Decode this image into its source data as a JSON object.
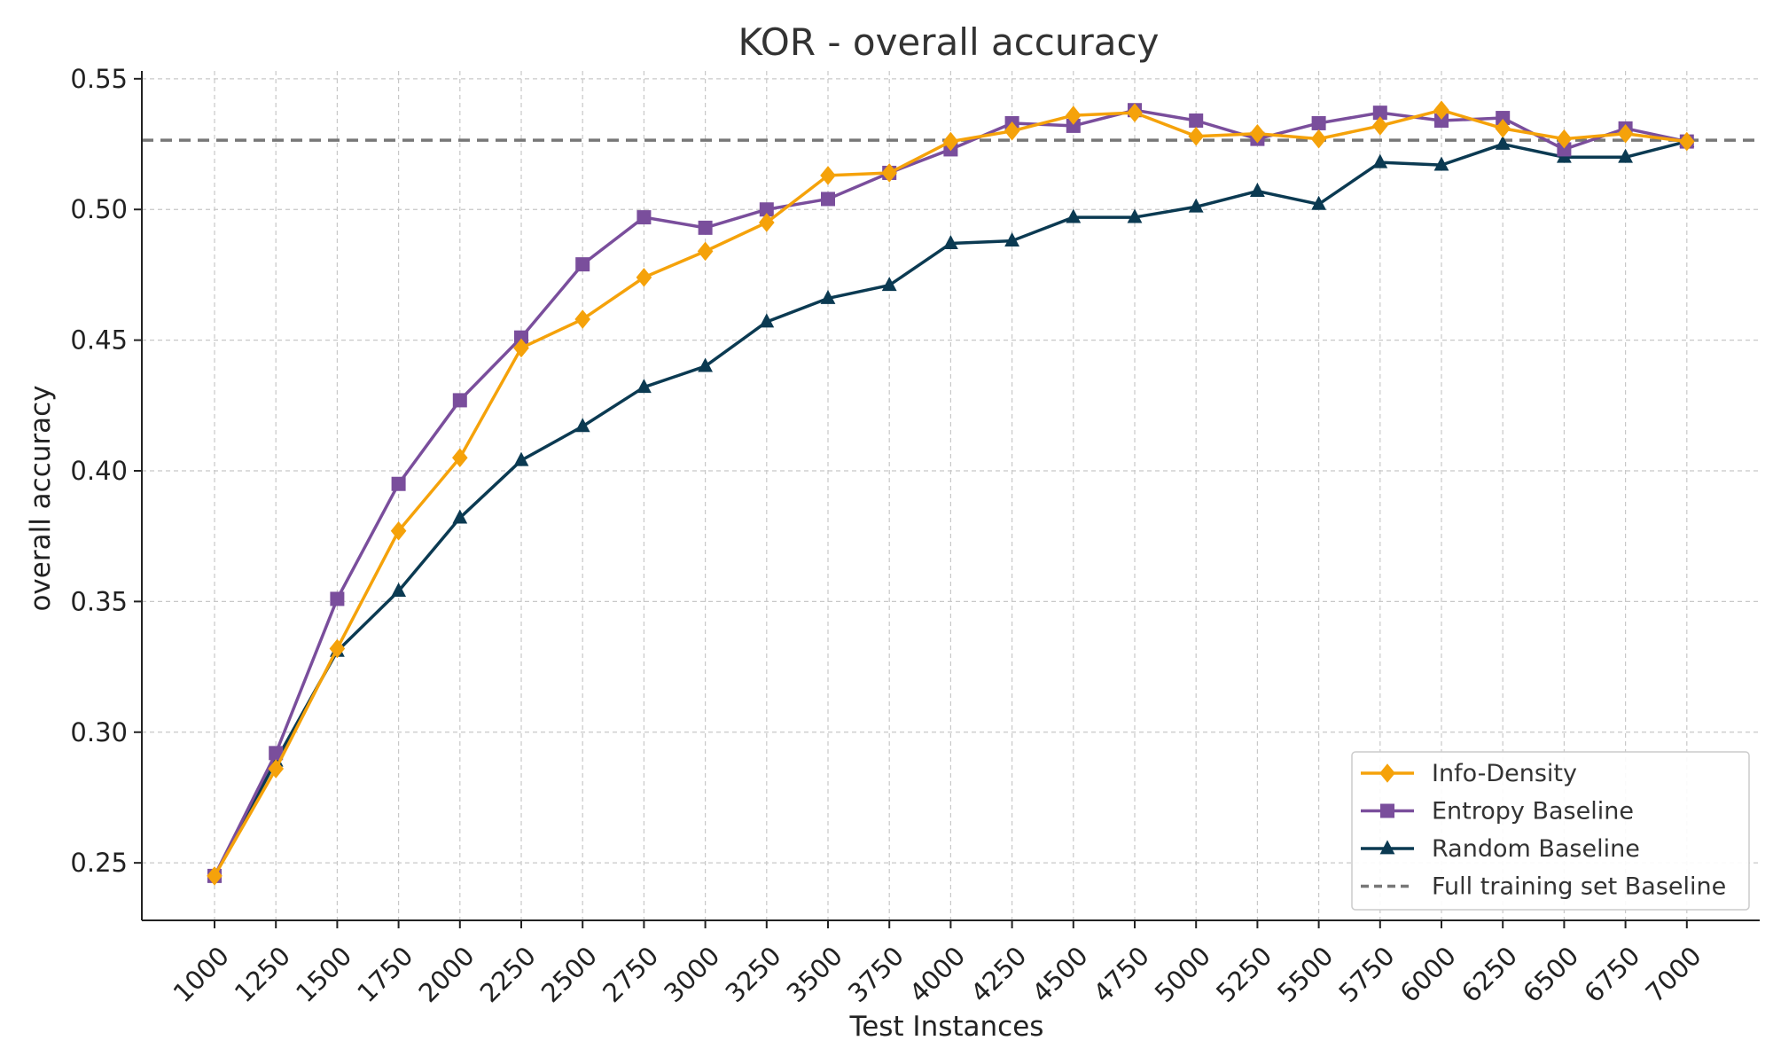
{
  "chart_data": {
    "type": "line",
    "title": "KOR - overall accuracy",
    "xlabel": "Test Instances",
    "ylabel": "overall accuracy",
    "x": [
      1000,
      1250,
      1500,
      1750,
      2000,
      2250,
      2500,
      2750,
      3000,
      3250,
      3500,
      3750,
      4000,
      4250,
      4500,
      4750,
      5000,
      5250,
      5500,
      5750,
      6000,
      6250,
      6500,
      6750,
      7000
    ],
    "x_tick_labels": [
      "1000",
      "1250",
      "1500",
      "1750",
      "2000",
      "2250",
      "2500",
      "2750",
      "3000",
      "3250",
      "3500",
      "3750",
      "4000",
      "4250",
      "4500",
      "4750",
      "5000",
      "5250",
      "5500",
      "5750",
      "6000",
      "6250",
      "6500",
      "6750",
      "7000"
    ],
    "ylim": [
      0.228,
      0.553
    ],
    "y_ticks": [
      0.25,
      0.3,
      0.35,
      0.4,
      0.45,
      0.5,
      0.55
    ],
    "y_tick_labels": [
      "0.25",
      "0.30",
      "0.35",
      "0.40",
      "0.45",
      "0.50",
      "0.55"
    ],
    "grid": true,
    "legend_position": "bottom-right",
    "series": [
      {
        "name": "Info-Density",
        "color": "#f5a20a",
        "marker": "diamond",
        "values": [
          0.245,
          0.286,
          0.332,
          0.377,
          0.405,
          0.447,
          0.458,
          0.474,
          0.484,
          0.495,
          0.513,
          0.514,
          0.526,
          0.53,
          0.536,
          0.537,
          0.528,
          0.529,
          0.527,
          0.532,
          0.538,
          0.531,
          0.527,
          0.529,
          0.526
        ]
      },
      {
        "name": "Entropy Baseline",
        "color": "#7a4e9c",
        "marker": "square",
        "values": [
          0.245,
          0.292,
          0.351,
          0.395,
          0.427,
          0.451,
          0.479,
          0.497,
          0.493,
          0.5,
          0.504,
          0.514,
          0.523,
          0.533,
          0.532,
          0.538,
          0.534,
          0.527,
          0.533,
          0.537,
          0.534,
          0.535,
          0.523,
          0.531,
          0.526
        ]
      },
      {
        "name": "Random Baseline",
        "color": "#0b3a52",
        "marker": "triangle",
        "values": [
          0.245,
          0.289,
          0.331,
          0.354,
          0.382,
          0.404,
          0.417,
          0.432,
          0.44,
          0.457,
          0.466,
          0.471,
          0.487,
          0.488,
          0.497,
          0.497,
          0.501,
          0.507,
          0.502,
          0.518,
          0.517,
          0.525,
          0.52,
          0.52,
          0.526
        ]
      }
    ],
    "reference_lines": [
      {
        "name": "Full training set Baseline",
        "value": 0.5265,
        "color": "#777777",
        "style": "dashed"
      }
    ]
  }
}
